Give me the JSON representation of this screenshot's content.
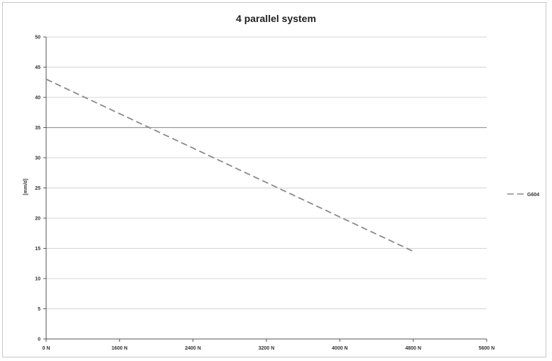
{
  "chart_data": {
    "type": "line",
    "title": "4 parallel system",
    "xlabel": "",
    "ylabel": "[mm/d]",
    "x_tick_labels": [
      "0 N",
      "1600 N",
      "2400 N",
      "3200 N",
      "4000 N",
      "4800 N",
      "5600 N"
    ],
    "x_ticks": [
      0,
      1600,
      2400,
      3200,
      4000,
      4800,
      5600
    ],
    "xlim": [
      0,
      5600
    ],
    "ylim": [
      0,
      50
    ],
    "y_ticks": [
      0,
      5,
      10,
      15,
      20,
      25,
      30,
      35,
      40,
      45,
      50
    ],
    "grid": true,
    "highlight_gridline": 35,
    "legend_position": "right",
    "series": [
      {
        "name": "G604",
        "color": "#8a8a8a",
        "dash": "dashed",
        "x": [
          0,
          4800
        ],
        "y": [
          43,
          14.5
        ]
      }
    ]
  }
}
